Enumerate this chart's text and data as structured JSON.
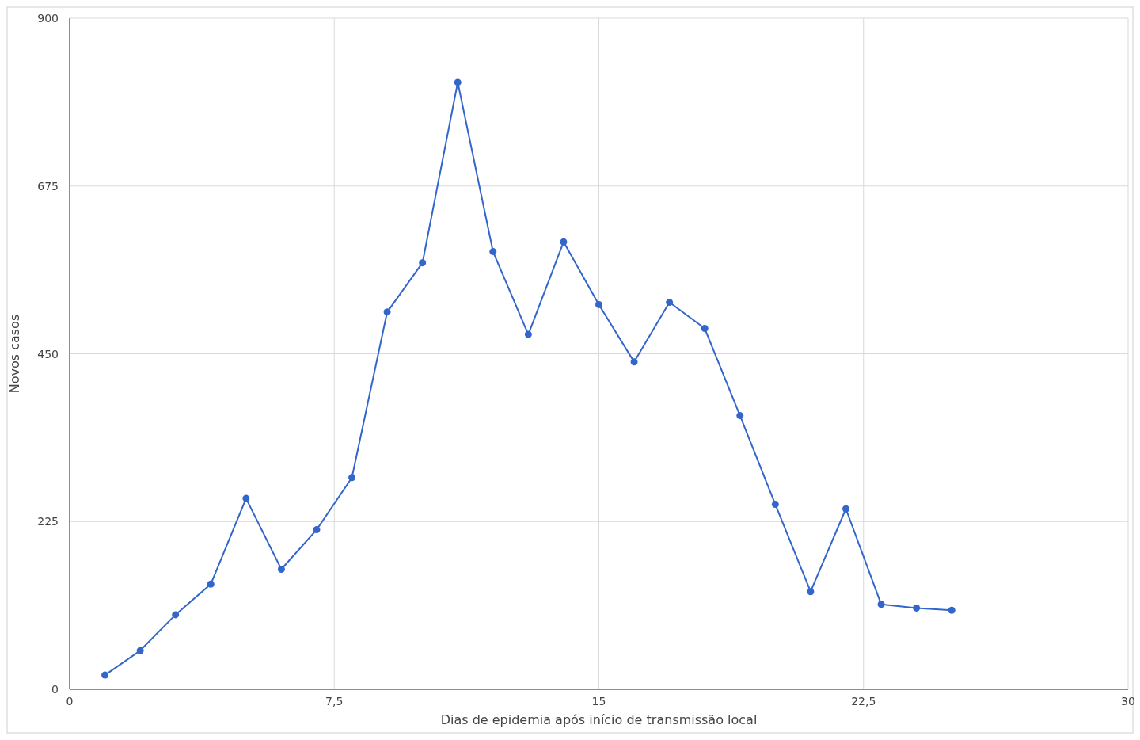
{
  "chart_data": {
    "type": "line",
    "xlabel": "Dias de epidemia após início de transmissão local",
    "ylabel": "Novos casos",
    "x": [
      1,
      2,
      3,
      4,
      5,
      6,
      7,
      8,
      9,
      10,
      11,
      12,
      13,
      14,
      15,
      16,
      17,
      18,
      19,
      20,
      21,
      22,
      23,
      24,
      25
    ],
    "series": [
      {
        "color": "#3366cc",
        "values": [
          19,
          52,
          100,
          141,
          256,
          161,
          214,
          284,
          506,
          572,
          814,
          587,
          476,
          600,
          516,
          439,
          519,
          484,
          367,
          248,
          131,
          242,
          114,
          109,
          106
        ]
      }
    ],
    "xlim": [
      0,
      30
    ],
    "xticks": [
      0,
      {
        "value": 7.5,
        "label": "7,5"
      },
      15,
      {
        "value": 22.5,
        "label": "22,5"
      },
      30
    ],
    "ylim": [
      0,
      900
    ],
    "yticks": [
      0,
      225,
      450,
      675,
      900
    ],
    "grid": true,
    "marker": "circle",
    "line_style": "solid"
  }
}
